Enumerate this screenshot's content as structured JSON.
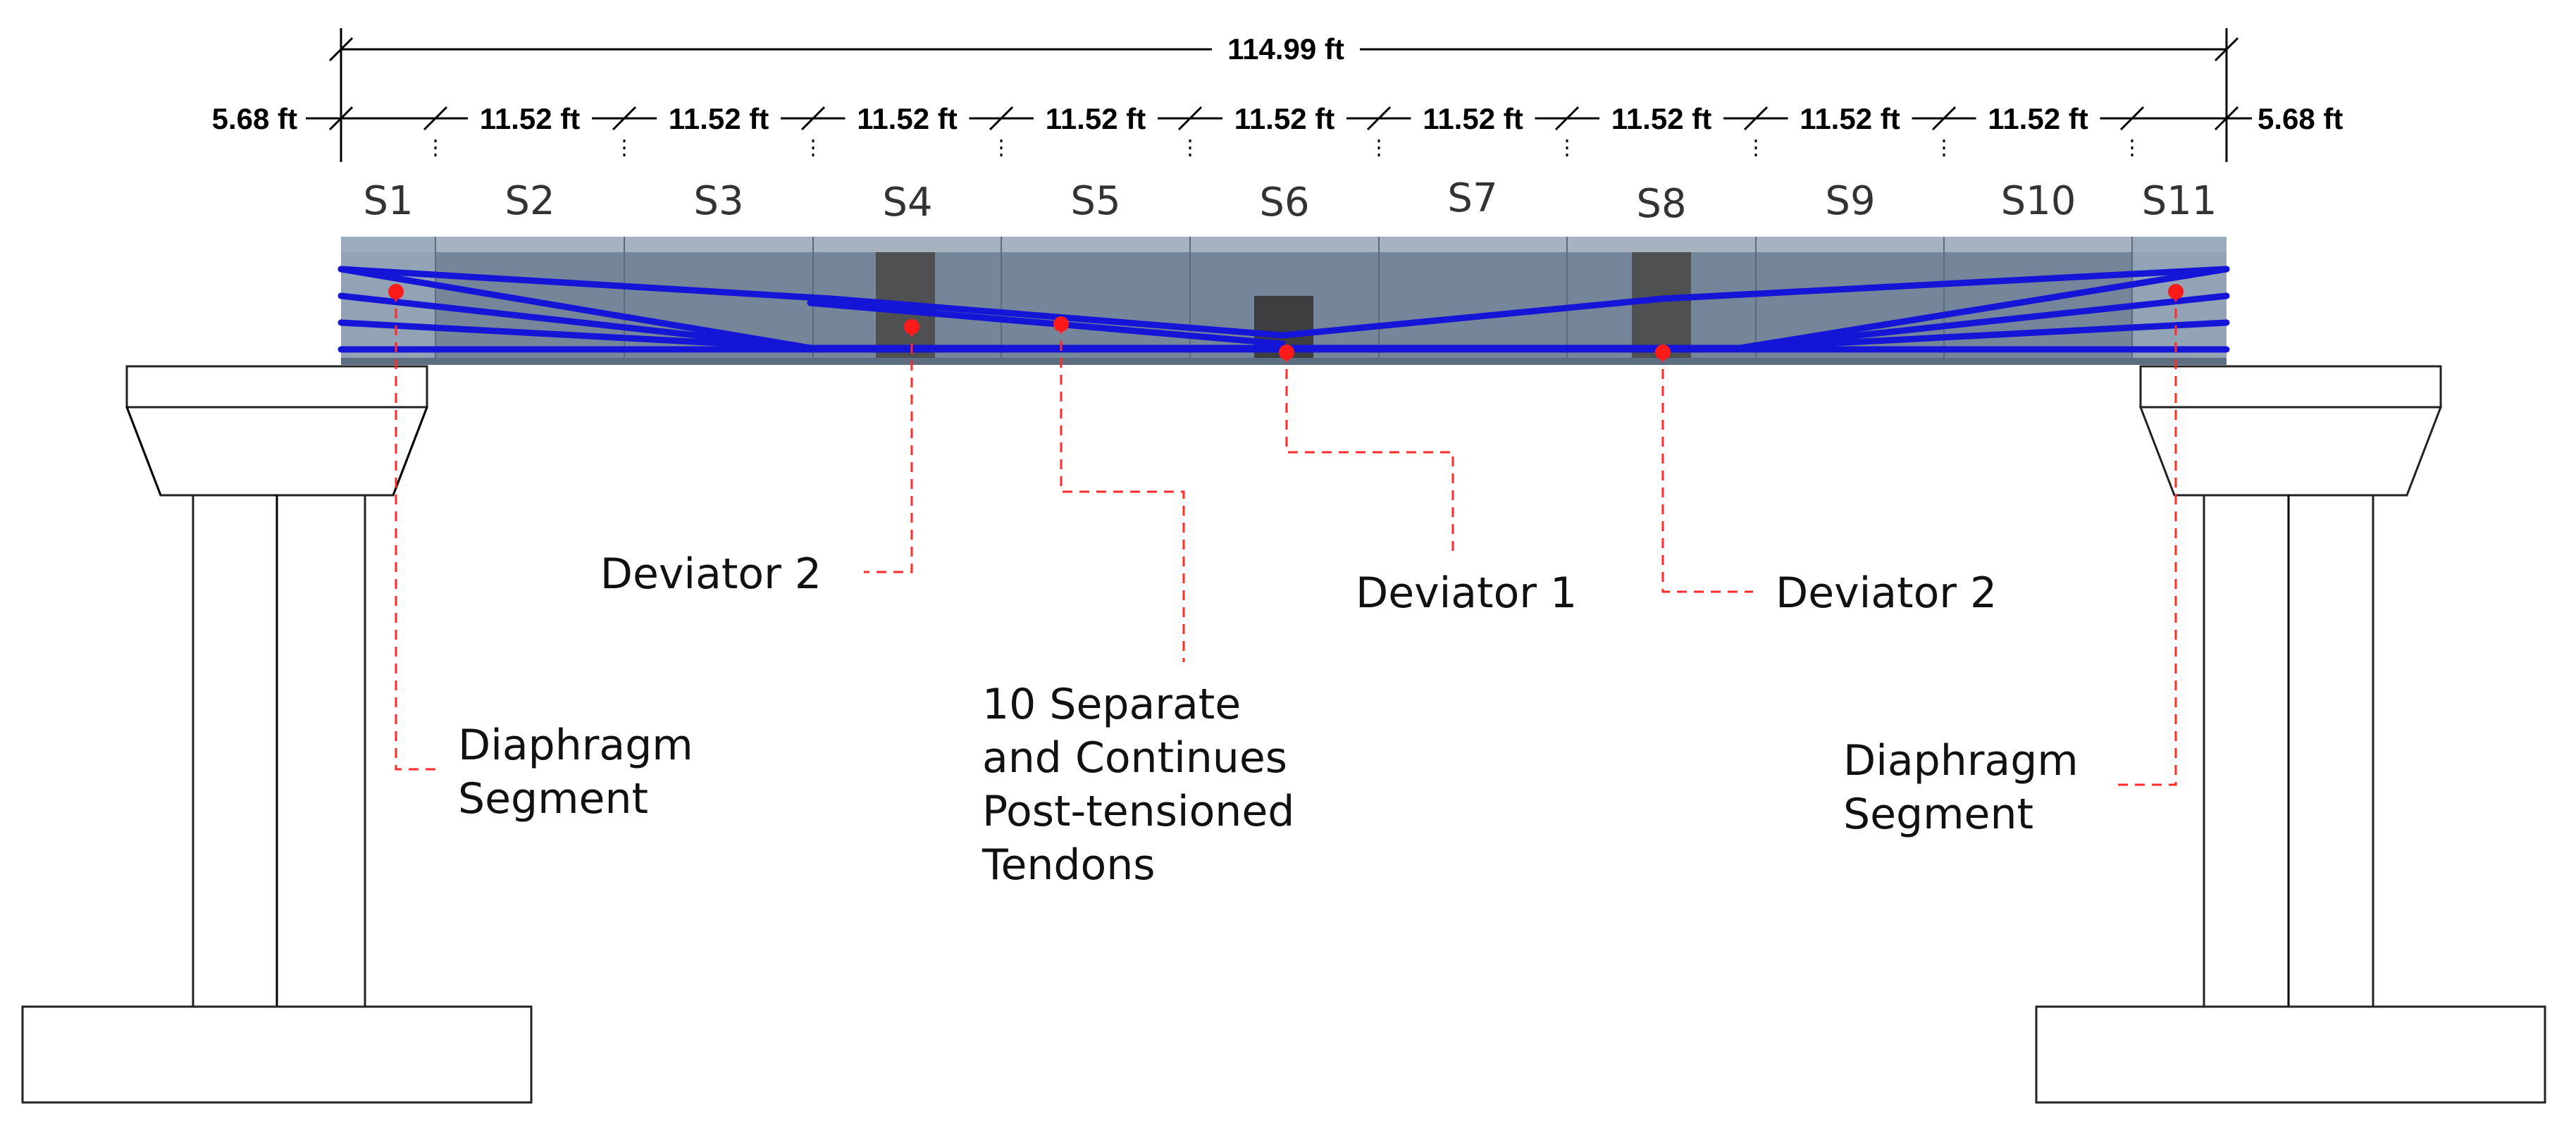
{
  "dimensions": {
    "total": "114.99 ft",
    "segments": [
      "5.68 ft",
      "11.52 ft",
      "11.52 ft",
      "11.52 ft",
      "11.52 ft",
      "11.52 ft",
      "11.52 ft",
      "11.52 ft",
      "11.52 ft",
      "11.52 ft",
      "5.68 ft"
    ]
  },
  "segment_labels": [
    "S1",
    "S2",
    "S3",
    "S4",
    "S5",
    "S6",
    "S7",
    "S8",
    "S9",
    "S10",
    "S11"
  ],
  "annotations": {
    "diaphragm_left": [
      "Diaphragm",
      "Segment"
    ],
    "deviator_2_left": "Deviator 2",
    "tendons": [
      "10 Separate",
      "and Continues",
      "Post-tensioned",
      "Tendons"
    ],
    "deviator_1": "Deviator 1",
    "deviator_2_right": "Deviator 2",
    "diaphragm_right": [
      "Diaphragm",
      "Segment"
    ]
  },
  "colors": {
    "tendon": "#1515d8",
    "leader": "#ff2a2a",
    "girder": "#76869a",
    "deviator": "#4a4a4a"
  }
}
